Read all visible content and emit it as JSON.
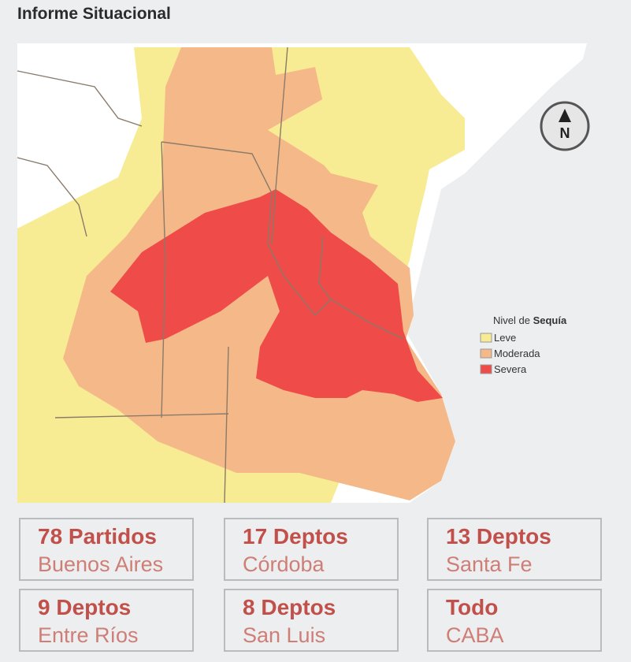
{
  "header": {
    "title": "Informe Situacional"
  },
  "legend": {
    "title": "Nivel de",
    "title_bold": "Sequía",
    "items": [
      "Leve",
      "Moderada",
      "Severa"
    ]
  },
  "cards": [
    {
      "count": "78 Partidos",
      "region": "Buenos Aires"
    },
    {
      "count": "17 Deptos",
      "region": "Córdoba"
    },
    {
      "count": "13 Deptos",
      "region": "Santa Fe"
    },
    {
      "count": "9 Deptos",
      "region": "Entre Ríos"
    },
    {
      "count": "8 Deptos",
      "region": "San Luis"
    },
    {
      "count": "Todo",
      "region": "CABA"
    }
  ]
}
